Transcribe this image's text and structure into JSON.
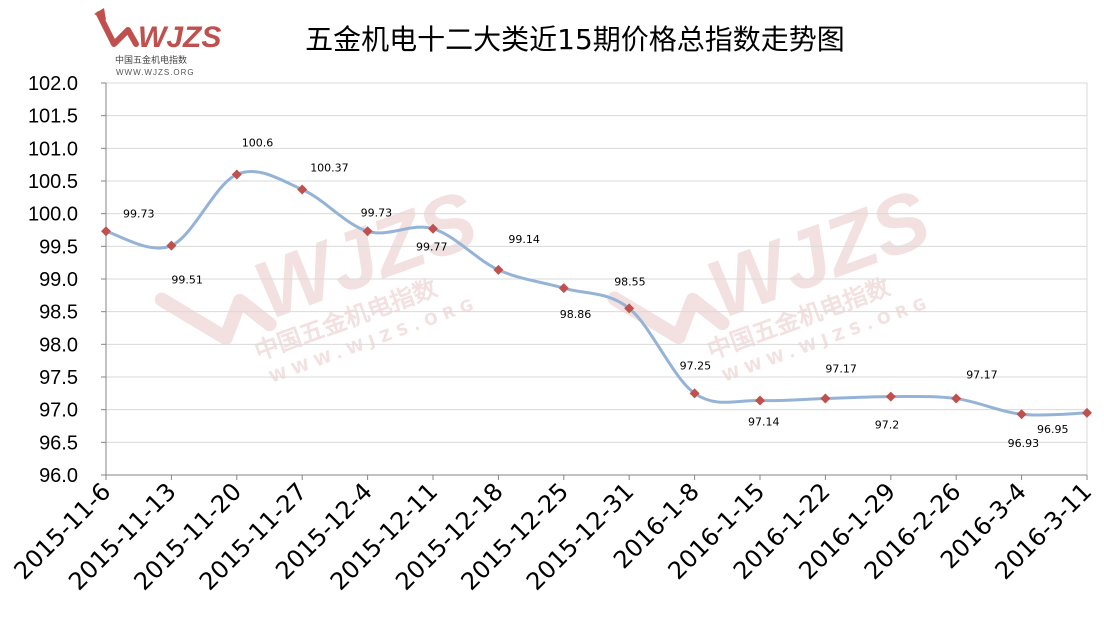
{
  "logo": {
    "brand": "WJZS",
    "subtitle": "中国五金机电指数",
    "url": "WWW.WJZS.ORG"
  },
  "watermarks": [
    {
      "brand": "WJZS",
      "subtitle": "中国五金机电指数",
      "url": "WWW.WJZS.ORG"
    },
    {
      "brand": "WJZS",
      "subtitle": "中国五金机电指数",
      "url": "WWW.WJZS.ORG"
    }
  ],
  "colors": {
    "line": "#95b3d7",
    "marker": "#c0504d",
    "grid": "#d9d9d9",
    "axis": "#868686",
    "logo": "#c0504d",
    "watermark": "#e8c9c7"
  },
  "chart_data": {
    "type": "line",
    "title": "五金机电十二大类近15期价格总指数走势图",
    "xlabel": "",
    "ylabel": "",
    "ylim": [
      96.0,
      102.0
    ],
    "y_ticks": [
      "96.0",
      "96.5",
      "97.0",
      "97.5",
      "98.0",
      "98.5",
      "99.0",
      "99.5",
      "100.0",
      "100.5",
      "101.0",
      "101.5",
      "102.0"
    ],
    "grid": true,
    "smooth": true,
    "categories": [
      "2015-11-6",
      "2015-11-13",
      "2015-11-20",
      "2015-11-27",
      "2015-12-4",
      "2015-12-11",
      "2015-12-18",
      "2015-12-25",
      "2015-12-31",
      "2016-1-8",
      "2016-1-15",
      "2016-1-22",
      "2016-1-29",
      "2016-2-26",
      "2016-3-4",
      "2016-3-11"
    ],
    "values": [
      99.73,
      99.51,
      100.6,
      100.37,
      99.73,
      99.77,
      99.14,
      98.86,
      98.55,
      97.25,
      97.14,
      97.17,
      97.2,
      97.17,
      96.93,
      96.95
    ],
    "data_labels": [
      "99.73",
      "99.51",
      "100.6",
      "100.37",
      "99.73",
      "99.77",
      "99.14",
      "98.86",
      "98.55",
      "97.25",
      "97.14",
      "97.17",
      "97.2",
      "97.17",
      "96.93",
      "96.95"
    ]
  }
}
